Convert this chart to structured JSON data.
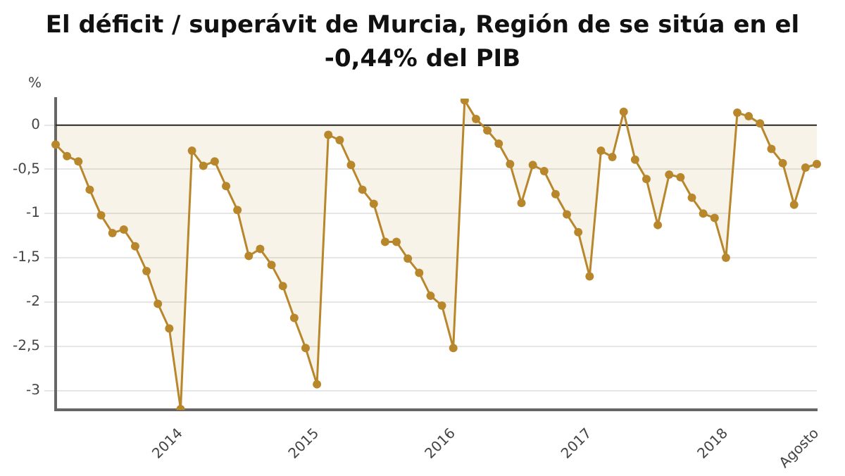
{
  "chart_data": {
    "type": "area",
    "title": "El déficit / superávit de Murcia, Región de se sitúa en el -0,44% del PIB",
    "ylabel": "%",
    "categories": [
      null,
      null,
      null,
      null,
      null,
      null,
      null,
      null,
      null,
      null,
      null,
      "2014",
      null,
      null,
      null,
      null,
      null,
      null,
      null,
      null,
      null,
      null,
      null,
      "2015",
      null,
      null,
      null,
      null,
      null,
      null,
      null,
      null,
      null,
      null,
      null,
      "2016",
      null,
      null,
      null,
      null,
      null,
      null,
      null,
      null,
      null,
      null,
      null,
      "2017",
      null,
      null,
      null,
      null,
      null,
      null,
      null,
      null,
      null,
      null,
      null,
      "2018",
      null,
      null,
      null,
      null,
      null,
      null,
      null,
      "Agosto"
    ],
    "series": [
      {
        "color": "#b8862b",
        "values": [
          -0.22,
          -0.35,
          -0.41,
          -0.73,
          -1.02,
          -1.22,
          -1.18,
          -1.37,
          -1.65,
          -2.02,
          -2.3,
          -3.21,
          -0.29,
          -0.46,
          -0.41,
          -0.69,
          -0.96,
          -1.48,
          -1.4,
          -1.58,
          -1.82,
          -2.18,
          -2.52,
          -2.93,
          -0.11,
          -0.17,
          -0.45,
          -0.73,
          -0.89,
          -1.32,
          -1.32,
          -1.51,
          -1.67,
          -1.93,
          -2.04,
          -2.52,
          0.28,
          0.07,
          -0.06,
          -0.21,
          -0.44,
          -0.88,
          -0.45,
          -0.52,
          -0.78,
          -1.01,
          -1.21,
          -1.71,
          -0.29,
          -0.36,
          0.15,
          -0.39,
          -0.61,
          -1.13,
          -0.56,
          -0.59,
          -0.82,
          -1.0,
          -1.05,
          -1.5,
          0.14,
          0.1,
          0.02,
          -0.27,
          -0.43,
          -0.9,
          -0.48,
          -0.44
        ]
      }
    ],
    "ylim": [
      -3.22,
      0.3
    ],
    "yticks": [
      0,
      {
        "value": -0.5,
        "label": "-0,5"
      },
      -1,
      {
        "value": -1.5,
        "label": "-1,5"
      },
      -2,
      {
        "value": -2.5,
        "label": "-2,5"
      },
      -3
    ],
    "ref_lines": [
      {
        "axis": "y",
        "value": 0,
        "color": "#222222"
      }
    ],
    "grid": "y",
    "legend": false,
    "marker": "circle",
    "line_style": "solid"
  }
}
